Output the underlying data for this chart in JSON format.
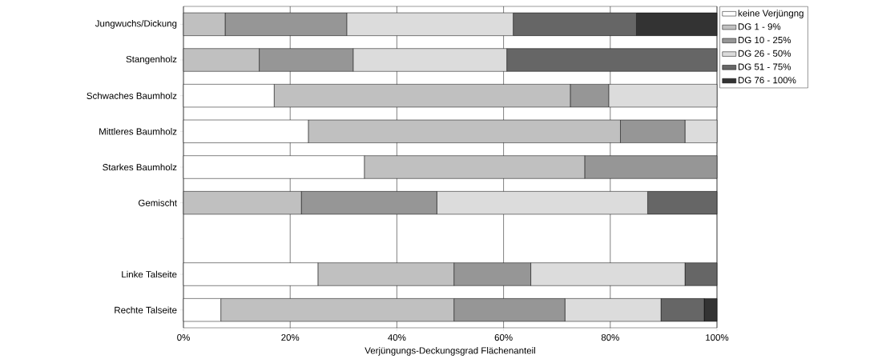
{
  "chart_data": {
    "type": "bar",
    "orientation": "horizontal",
    "stacked": true,
    "xlabel": "Verjüngungs-Deckungsgrad Flächenanteil",
    "categories": [
      "Jungwuchs/Dickung",
      "Stangenholz",
      "Schwaches Baumholz",
      "Mittleres Baumholz",
      "Starkes Baumholz",
      "Gemischt",
      null,
      "Linke Talseite",
      "Rechte Talseite"
    ],
    "series": [
      {
        "name": "keine Verjüngng",
        "color": "#ffffff",
        "values": [
          0,
          0,
          17.0,
          23.4,
          33.9,
          0,
          null,
          25.2,
          7.0
        ]
      },
      {
        "name": "DG 1 - 9%",
        "color": "#c0c0c0",
        "values": [
          7.8,
          14.2,
          55.5,
          58.5,
          41.3,
          22.1,
          null,
          25.5,
          43.7
        ]
      },
      {
        "name": "DG 10 - 25%",
        "color": "#969696",
        "values": [
          22.8,
          17.6,
          7.2,
          12.1,
          24.8,
          25.4,
          null,
          14.4,
          20.8
        ]
      },
      {
        "name": "DG 26 - 50%",
        "color": "#dcdcdc",
        "values": [
          31.2,
          28.8,
          20.3,
          6.0,
          0,
          39.5,
          null,
          28.9,
          18.0
        ]
      },
      {
        "name": "DG 51 - 75%",
        "color": "#666666",
        "values": [
          23.1,
          39.4,
          0,
          0,
          0,
          13.0,
          null,
          6.0,
          8.1
        ]
      },
      {
        "name": "DG 76 - 100%",
        "color": "#333333",
        "values": [
          15.1,
          0,
          0,
          0,
          0,
          0,
          null,
          0,
          2.4
        ]
      }
    ],
    "xlim": [
      0,
      100
    ],
    "xticks": [
      {
        "value": 0,
        "label": "0%"
      },
      {
        "value": 20,
        "label": "20%"
      },
      {
        "value": 40,
        "label": "40%"
      },
      {
        "value": 60,
        "label": "60%"
      },
      {
        "value": 80,
        "label": "80%"
      },
      {
        "value": 100,
        "label": "100%"
      }
    ],
    "grid": "x",
    "legend": "right"
  }
}
